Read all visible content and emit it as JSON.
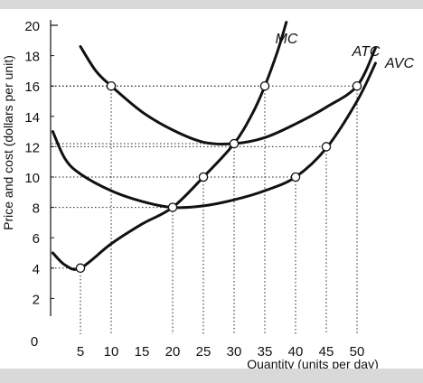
{
  "chart_data": {
    "type": "line",
    "xlabel": "Quantity (units per day)",
    "ylabel": "Price and cost (dollars per unit)",
    "xlim": [
      0,
      50
    ],
    "ylim": [
      0,
      20
    ],
    "xticks": [
      5,
      10,
      15,
      20,
      25,
      30,
      35,
      40,
      45,
      50
    ],
    "yticks": [
      2,
      4,
      6,
      8,
      10,
      12,
      14,
      16,
      18,
      20
    ],
    "origin_label": "0",
    "grid": false,
    "series": [
      {
        "name": "MC",
        "values": [
          [
            0.5,
            5.0
          ],
          [
            2.5,
            4.2
          ],
          [
            5,
            4.0
          ],
          [
            10,
            5.6
          ],
          [
            15,
            6.9
          ],
          [
            20,
            8.0
          ],
          [
            25,
            10.0
          ],
          [
            30,
            12.2
          ],
          [
            33,
            14.2
          ],
          [
            35,
            16.0
          ],
          [
            37,
            18.2
          ],
          [
            38.5,
            20.2
          ]
        ]
      },
      {
        "name": "ATC",
        "values": [
          [
            5,
            18.6
          ],
          [
            7.5,
            17.0
          ],
          [
            10,
            16.0
          ],
          [
            15,
            14.3
          ],
          [
            20,
            13.1
          ],
          [
            25,
            12.3
          ],
          [
            30,
            12.2
          ],
          [
            35,
            12.6
          ],
          [
            40,
            13.5
          ],
          [
            45,
            14.6
          ],
          [
            50,
            16.0
          ],
          [
            53,
            18.5
          ]
        ]
      },
      {
        "name": "AVC",
        "values": [
          [
            0.5,
            13.0
          ],
          [
            2.5,
            11.2
          ],
          [
            5,
            10.2
          ],
          [
            10,
            9.1
          ],
          [
            15,
            8.4
          ],
          [
            20,
            8.0
          ],
          [
            25,
            8.1
          ],
          [
            30,
            8.5
          ],
          [
            35,
            9.1
          ],
          [
            40,
            10.0
          ],
          [
            45,
            11.9
          ],
          [
            50,
            15.0
          ],
          [
            53,
            17.5
          ]
        ]
      }
    ],
    "points": [
      {
        "x": 5,
        "y": 4
      },
      {
        "x": 10,
        "y": 16
      },
      {
        "x": 20,
        "y": 8
      },
      {
        "x": 25,
        "y": 10
      },
      {
        "x": 30,
        "y": 12.2
      },
      {
        "x": 35,
        "y": 16
      },
      {
        "x": 40,
        "y": 10
      },
      {
        "x": 45,
        "y": 12
      },
      {
        "x": 50,
        "y": 16
      }
    ],
    "reference_lines": [
      {
        "x": 5,
        "y": 4
      },
      {
        "x": 10,
        "y": 16
      },
      {
        "x": 20,
        "y": 8
      },
      {
        "x": 25,
        "y": 10
      },
      {
        "x": 30,
        "y": 12.2
      },
      {
        "x": 35,
        "y": 16
      },
      {
        "x": 40,
        "y": 10
      },
      {
        "x": 45,
        "y": 12
      },
      {
        "x": 50,
        "y": 16
      }
    ]
  }
}
